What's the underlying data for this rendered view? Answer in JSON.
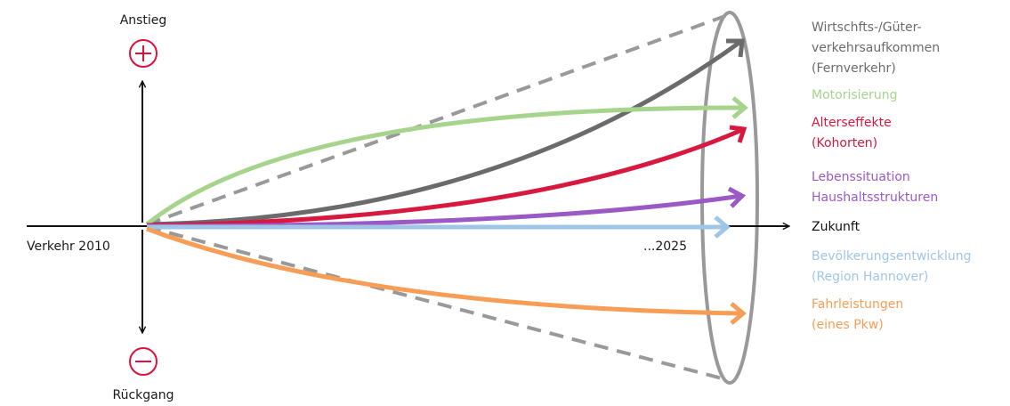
{
  "axis": {
    "top_label": "Anstieg",
    "bottom_label": "Rückgang",
    "left_label": "Verkehr 2010",
    "end_label": "...2025",
    "right_label": "Zukunft",
    "plus_symbol": "+",
    "minus_symbol": "−"
  },
  "colors": {
    "axis": "#111111",
    "plus": "#e0103a",
    "minus": "#e0103a",
    "cone": "#999999"
  },
  "legend": [
    {
      "lines": [
        "Wirtschfts-/Güter-",
        "verkehrsaufkommen",
        "(Fernverkehr)"
      ],
      "color": "#6b6b6b"
    },
    {
      "lines": [
        "Motorisierung"
      ],
      "color": "#a6d48c"
    },
    {
      "lines": [
        "Alterseffekte",
        "(Kohorten)"
      ],
      "color": "#d7193f"
    },
    {
      "lines": [
        "Lebenssituation",
        "Haushaltsstrukturen"
      ],
      "color": "#9b59c6"
    },
    {
      "lines": [
        "Zukunft"
      ],
      "color": "#111111"
    },
    {
      "lines": [
        "Bevölkerungsentwicklung",
        "(Region Hannover)"
      ],
      "color": "#9fc6e6"
    },
    {
      "lines": [
        "Fahrleistungen",
        "(eines Pkw)"
      ],
      "color": "#f79d55"
    }
  ]
}
